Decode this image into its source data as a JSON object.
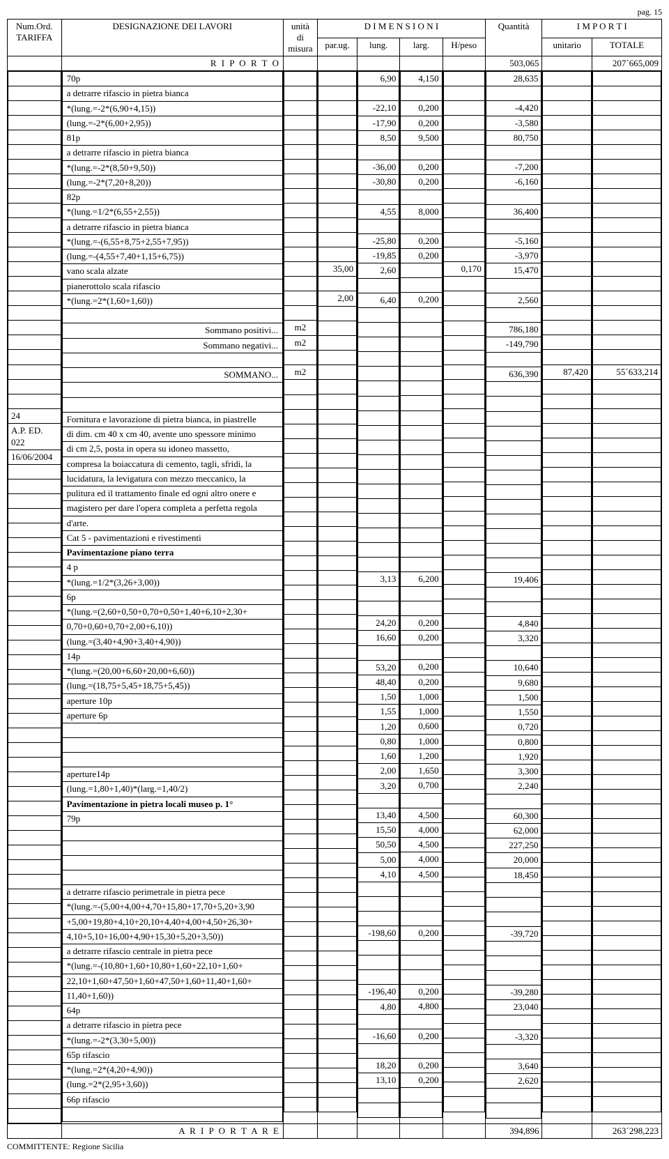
{
  "page_label": "pag. 15",
  "header": {
    "num_ord": "Num.Ord.",
    "tariffa": "TARIFFA",
    "designazione": "DESIGNAZIONE DEI LAVORI",
    "unita": "unità",
    "di": "di",
    "misura": "misura",
    "dimensioni": "D I M E N S I O N I",
    "parug": "par.ug.",
    "lung": "lung.",
    "larg": "larg.",
    "hpeso": "H/peso",
    "quantita": "Quantità",
    "importi": "I M P O R T I",
    "unitario": "unitario",
    "totale": "TOTALE"
  },
  "riporto_label": "R I P O R T O",
  "riporto_qta": "503,065",
  "riporto_tot": "207´665,009",
  "ariportare_label": "A   R I P O R T A R E",
  "ariportare_qta": "394,896",
  "ariportare_tot": "263´298,223",
  "committente": "COMMITTENTE: Regione Sicilia",
  "rows": [
    {
      "desc": "70p",
      "lung": "6,90",
      "larg": "4,150",
      "qta": "28,635"
    },
    {
      "desc": "a detrarre rifascio in pietra bianca"
    },
    {
      "desc": " *(lung.=-2*(6,90+4,15))",
      "lung": "-22,10",
      "larg": "0,200",
      "qta": "-4,420"
    },
    {
      "desc": "(lung.=-2*(6,00+2,95))",
      "lung": "-17,90",
      "larg": "0,200",
      "qta": "-3,580"
    },
    {
      "desc": "81p",
      "lung": "8,50",
      "larg": "9,500",
      "qta": "80,750"
    },
    {
      "desc": "a detrarre rifascio in pietra bianca"
    },
    {
      "desc": " *(lung.=-2*(8,50+9,50))",
      "lung": "-36,00",
      "larg": "0,200",
      "qta": "-7,200"
    },
    {
      "desc": "(lung.=-2*(7,20+8,20))",
      "lung": "-30,80",
      "larg": "0,200",
      "qta": "-6,160"
    },
    {
      "desc": "82p"
    },
    {
      "desc": " *(lung.=1/2*(6,55+2,55))",
      "lung": "4,55",
      "larg": "8,000",
      "qta": "36,400"
    },
    {
      "desc": "a detrarre rifascio in pietra bianca"
    },
    {
      "desc": " *(lung.=-(6,55+8,75+2,55+7,95))",
      "lung": "-25,80",
      "larg": "0,200",
      "qta": "-5,160"
    },
    {
      "desc": "(lung.=-(4,55+7,40+1,15+6,75))",
      "lung": "-19,85",
      "larg": "0,200",
      "qta": "-3,970"
    },
    {
      "desc": "vano scala alzate",
      "parug": "35,00",
      "lung": "2,60",
      "hpeso": "0,170",
      "qta": "15,470"
    },
    {
      "desc": "pianerottolo scala rifascio"
    },
    {
      "desc": " *(lung.=2*(1,60+1,60))",
      "parug": "2,00",
      "lung": "6,40",
      "larg": "0,200",
      "qta": "2,560"
    },
    {
      "blank": true
    },
    {
      "desc": "Sommano positivi...",
      "desc_align": "r",
      "unit": "m2",
      "qta": "786,180",
      "sumtop": true
    },
    {
      "desc": "Sommano negativi...",
      "desc_align": "r",
      "unit": "m2",
      "qta": "-149,790"
    },
    {
      "blank": true
    },
    {
      "desc": "SOMMANO...",
      "desc_align": "r",
      "unit": "m2",
      "qta": "636,390",
      "unitario": "87,420",
      "totale": "55´633,214",
      "sumtop": true
    },
    {
      "blank": true
    },
    {
      "blank": true
    }
  ],
  "item2": {
    "num": "24",
    "code": "A.P. ED. 022",
    "date": "16/06/2004",
    "desc_lines": [
      "Fornitura e lavorazione di pietra bianca, in piastrelle",
      "di dim. cm 40 x cm 40, avente uno spessore minimo",
      "di cm 2,5, posta in opera su idoneo massetto,",
      "compresa la boiaccatura di cemento, tagli, sfridi, la",
      "lucidatura, la levigatura con mezzo meccanico, la",
      "pulitura ed il trattamento finale ed ogni altro onere e",
      "magistero per dare l'opera completa a perfetta regola",
      "d'arte.",
      "Cat 5 - pavimentazioni e rivestimenti"
    ],
    "bold_line": "Pavimentazione piano terra"
  },
  "rows2": [
    {
      "desc": "4 p"
    },
    {
      "desc": " *(lung.=1/2*(3,26+3,00))",
      "lung": "3,13",
      "larg": "6,200",
      "qta": "19,406"
    },
    {
      "desc": "6p"
    },
    {
      "desc": " *(lung.=(2,60+0,50+0,70+0,50+1,40+6,10+2,30+"
    },
    {
      "desc": "0,70+0,60+0,70+2,00+6,10))",
      "lung": "24,20",
      "larg": "0,200",
      "qta": "4,840"
    },
    {
      "desc": "(lung.=(3,40+4,90+3,40+4,90))",
      "lung": "16,60",
      "larg": "0,200",
      "qta": "3,320"
    },
    {
      "desc": "14p"
    },
    {
      "desc": " *(lung.=(20,00+6,60+20,00+6,60))",
      "lung": "53,20",
      "larg": "0,200",
      "qta": "10,640"
    },
    {
      "desc": "(lung.=(18,75+5,45+18,75+5,45))",
      "lung": "48,40",
      "larg": "0,200",
      "qta": "9,680"
    },
    {
      "desc": "aperture 10p",
      "lung": "1,50",
      "larg": "1,000",
      "qta": "1,500"
    },
    {
      "desc": "aperture 6p",
      "lung": "1,55",
      "larg": "1,000",
      "qta": "1,550"
    },
    {
      "desc": "",
      "lung": "1,20",
      "larg": "0,600",
      "qta": "0,720"
    },
    {
      "desc": "",
      "lung": "0,80",
      "larg": "1,000",
      "qta": "0,800"
    },
    {
      "desc": "",
      "lung": "1,60",
      "larg": "1,200",
      "qta": "1,920"
    },
    {
      "desc": "aperture14p",
      "lung": "2,00",
      "larg": "1,650",
      "qta": "3,300"
    },
    {
      "desc": "(lung.=1,80+1,40)*(larg.=1,40/2)",
      "lung": "3,20",
      "larg": "0,700",
      "qta": "2,240"
    },
    {
      "desc": "Pavimentazione in pietra locali museo p. 1°",
      "bold": true
    },
    {
      "desc": "79p",
      "lung": "13,40",
      "larg": "4,500",
      "qta": "60,300"
    },
    {
      "desc": "",
      "lung": "15,50",
      "larg": "4,000",
      "qta": "62,000"
    },
    {
      "desc": "",
      "lung": "50,50",
      "larg": "4,500",
      "qta": "227,250"
    },
    {
      "desc": "",
      "lung": "5,00",
      "larg": "4,000",
      "qta": "20,000"
    },
    {
      "desc": "",
      "lung": "4,10",
      "larg": "4,500",
      "qta": "18,450"
    },
    {
      "desc": "a detrarre rifascio perimetrale in pietra pece"
    },
    {
      "desc": " *(lung.=-(5,00+4,00+4,70+15,80+17,70+5,20+3,90"
    },
    {
      "desc": "+5,00+19,80+4,10+20,10+4,40+4,00+4,50+26,30+"
    },
    {
      "desc": "4,10+5,10+16,00+4,90+15,30+5,20+3,50))",
      "lung": "-198,60",
      "larg": "0,200",
      "qta": "-39,720"
    },
    {
      "desc": "a detrarre rifascio centrale in pietra pece"
    },
    {
      "desc": " *(lung.=-(10,80+1,60+10,80+1,60+22,10+1,60+"
    },
    {
      "desc": "22,10+1,60+47,50+1,60+47,50+1,60+11,40+1,60+"
    },
    {
      "desc": "11,40+1,60))",
      "lung": "-196,40",
      "larg": "0,200",
      "qta": "-39,280"
    },
    {
      "desc": "64p",
      "lung": "4,80",
      "larg": "4,800",
      "qta": "23,040"
    },
    {
      "desc": "a detrarre rifascio in pietra pece"
    },
    {
      "desc": " *(lung.=-2*(3,30+5,00))",
      "lung": "-16,60",
      "larg": "0,200",
      "qta": "-3,320"
    },
    {
      "desc": "65p rifascio"
    },
    {
      "desc": " *(lung.=2*(4,20+4,90))",
      "lung": "18,20",
      "larg": "0,200",
      "qta": "3,640"
    },
    {
      "desc": "(lung.=2*(2,95+3,60))",
      "lung": "13,10",
      "larg": "0,200",
      "qta": "2,620"
    },
    {
      "desc": "66p rifascio"
    },
    {
      "blank": true
    }
  ]
}
